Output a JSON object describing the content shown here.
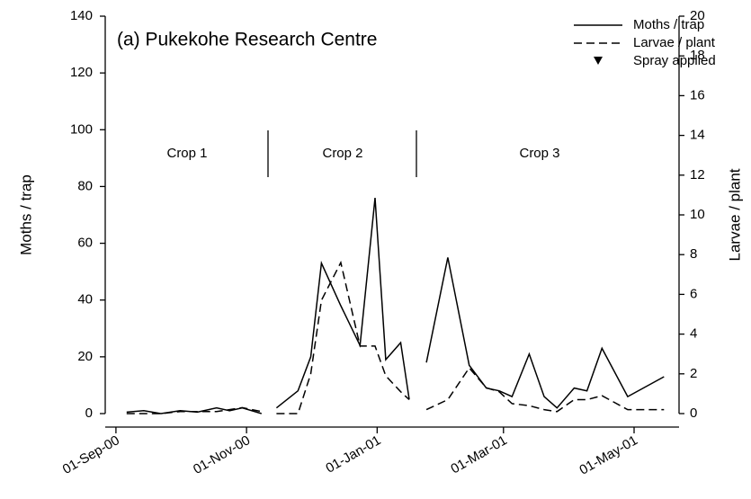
{
  "chart_data": {
    "type": "line",
    "title": "(a) Pukekohe Research Centre",
    "y_label": "Moths / trap",
    "y2_label": "Larvae / plant",
    "x": [
      "2000-09-06",
      "2000-09-14",
      "2000-09-22",
      "2000-10-01",
      "2000-10-09",
      "2000-10-18",
      "2000-10-24",
      "2000-10-30",
      "2000-11-08",
      "2000-11-11",
      "2000-11-15",
      "2000-11-25",
      "2000-12-01",
      "2000-12-06",
      "2000-12-15",
      "2000-12-24",
      "2000-12-31",
      "2001-01-05",
      "2001-01-12",
      "2001-01-16",
      "2001-01-20",
      "2001-01-24",
      "2001-02-03",
      "2001-02-13",
      "2001-02-21",
      "2001-02-27",
      "2001-03-05",
      "2001-03-13",
      "2001-03-20",
      "2001-03-26",
      "2001-04-03",
      "2001-04-09",
      "2001-04-16",
      "2001-04-28",
      "2001-05-15"
    ],
    "series": [
      {
        "name": "Moths / trap",
        "color": "#000000",
        "dash": "none",
        "axis": "y",
        "values": [
          0.5,
          1,
          0,
          1,
          0.5,
          2,
          1,
          2,
          0,
          null,
          2,
          8,
          20,
          53,
          38,
          24,
          76,
          19,
          25,
          5,
          null,
          18,
          55,
          17,
          9,
          8,
          6,
          21,
          6,
          2,
          9,
          8,
          23,
          6,
          13
        ]
      },
      {
        "name": "Larvae / plant",
        "color": "#000000",
        "dash": "9,5",
        "axis": "y2",
        "values": [
          0,
          0,
          0,
          0.1,
          0.1,
          0.1,
          0.2,
          0.3,
          0.1,
          null,
          0,
          0,
          2,
          5.7,
          7.6,
          3.4,
          3.4,
          1.9,
          1.1,
          0.7,
          null,
          0.2,
          0.7,
          2.3,
          1.3,
          1.1,
          0.5,
          0.4,
          0.2,
          0.1,
          0.7,
          0.7,
          0.9,
          0.2,
          0.2
        ]
      }
    ],
    "legend_marker": {
      "name": "Spray applied",
      "symbol": "triangle-down"
    },
    "annotations": [
      "Crop 1",
      "Crop 2",
      "Crop 3"
    ],
    "xlim": [
      "2000-08-27",
      "2001-05-22"
    ],
    "xticks": [
      {
        "value": "2000-09-01",
        "label": "01-Sep-00"
      },
      {
        "value": "2000-11-01",
        "label": "01-Nov-00"
      },
      {
        "value": "2001-01-01",
        "label": "01-Jan-01"
      },
      {
        "value": "2001-03-01",
        "label": "01-Mar-01"
      },
      {
        "value": "2001-05-01",
        "label": "01-May-01"
      }
    ],
    "ylim": [
      0,
      140
    ],
    "yticks": [
      0,
      20,
      40,
      60,
      80,
      100,
      120,
      140
    ],
    "y2lim": [
      0,
      20
    ],
    "y2ticks": [
      0,
      2,
      4,
      6,
      8,
      10,
      12,
      14,
      16,
      18,
      20
    ],
    "legend_position": "upper right",
    "grid": false
  }
}
